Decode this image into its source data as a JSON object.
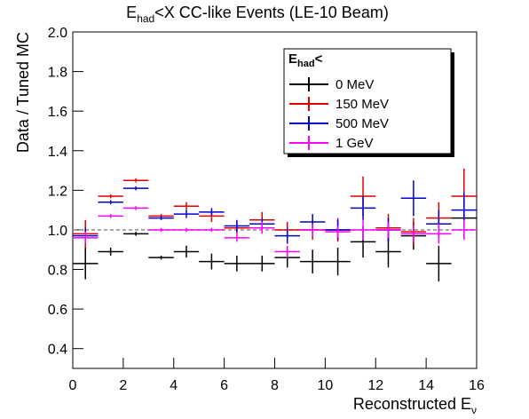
{
  "chart_data": {
    "type": "errorbar",
    "title": {
      "main": "E",
      "sub": "had",
      "rest": "<X CC-like Events (LE-10 Beam)"
    },
    "x_label": {
      "main": "Reconstructed E",
      "sub": "ν"
    },
    "y_label": "Data / Tuned MC",
    "legend_title": {
      "main": "E",
      "sub": "had",
      "rest": "<"
    },
    "legend_position": "upper-right",
    "x": [
      0.5,
      1.5,
      2.5,
      3.5,
      4.5,
      5.5,
      6.5,
      7.5,
      8.5,
      9.5,
      10.5,
      11.5,
      12.5,
      13.5,
      14.5,
      15.5
    ],
    "x_err": 0.5,
    "reference_line": 1,
    "series": [
      {
        "name": "0 MeV",
        "color": "#000000",
        "values": [
          0.83,
          0.89,
          0.98,
          0.86,
          0.89,
          0.84,
          0.83,
          0.83,
          0.86,
          0.84,
          0.84,
          0.94,
          0.89,
          0.97,
          0.83,
          1.06
        ],
        "errors": [
          0.08,
          0.02,
          0.01,
          0.01,
          0.03,
          0.04,
          0.04,
          0.04,
          0.05,
          0.06,
          0.07,
          0.08,
          0.08,
          0.07,
          0.09,
          0.1
        ]
      },
      {
        "name": "150 MeV",
        "color": "#e00000",
        "values": [
          0.98,
          1.17,
          1.25,
          1.07,
          1.12,
          1.07,
          1.01,
          1.05,
          1.0,
          1.0,
          1.0,
          1.17,
          1.01,
          0.99,
          1.06,
          1.17
        ],
        "errors": [
          0.07,
          0.01,
          0.01,
          0.01,
          0.02,
          0.03,
          0.03,
          0.04,
          0.04,
          0.05,
          0.06,
          0.1,
          0.07,
          0.07,
          0.08,
          0.14
        ]
      },
      {
        "name": "500 MeV",
        "color": "#0000d0",
        "values": [
          0.97,
          1.14,
          1.21,
          1.06,
          1.08,
          1.09,
          1.02,
          1.03,
          0.97,
          1.04,
          1.0,
          1.11,
          1.0,
          1.16,
          1.03,
          1.1
        ],
        "errors": [
          0.04,
          0.01,
          0.01,
          0.01,
          0.02,
          0.02,
          0.03,
          0.03,
          0.04,
          0.04,
          0.05,
          0.06,
          0.06,
          0.09,
          0.07,
          0.09
        ]
      },
      {
        "name": "1 GeV",
        "color": "#ff00ff",
        "values": [
          0.96,
          1.07,
          1.11,
          1.0,
          1.0,
          1.0,
          0.96,
          1.01,
          0.89,
          1.0,
          0.99,
          1.0,
          1.0,
          0.98,
          0.98,
          1.0
        ],
        "errors": [
          0.03,
          0.01,
          0.01,
          0.01,
          0.01,
          0.01,
          0.02,
          0.03,
          0.03,
          0.03,
          0.03,
          0.05,
          0.04,
          0.04,
          0.05,
          0.05
        ]
      }
    ],
    "xlim": [
      0,
      16
    ],
    "xticks": [
      0,
      2,
      4,
      6,
      8,
      10,
      12,
      14,
      16
    ],
    "ylim": [
      0.3,
      2.0
    ],
    "yticks": [
      0.4,
      0.6,
      0.8,
      {
        "value": 1,
        "label": "1.0"
      },
      1.2,
      1.4,
      1.6,
      1.8,
      {
        "value": 2,
        "label": "2.0"
      }
    ]
  }
}
